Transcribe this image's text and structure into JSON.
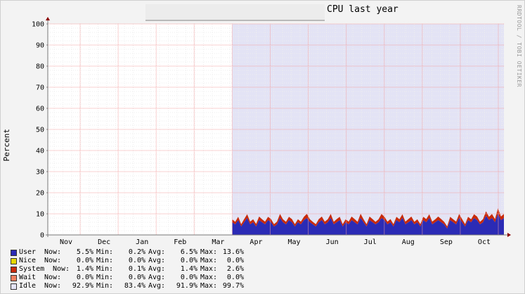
{
  "title": "CPU last year",
  "watermark": "RRDTOOL / TOBI OETIKER",
  "chart_data": {
    "type": "area",
    "title": "CPU last year",
    "ylabel": "Percent",
    "xlabel": "",
    "ylim": [
      0,
      100
    ],
    "yticks": [
      0,
      10,
      20,
      30,
      40,
      50,
      60,
      70,
      80,
      90,
      100
    ],
    "months": [
      "Nov",
      "Dec",
      "Jan",
      "Feb",
      "Mar",
      "Apr",
      "May",
      "Jun",
      "Jul",
      "Aug",
      "Sep",
      "Oct"
    ],
    "grid": true,
    "stacked": true,
    "data_start_month": "Mar",
    "series": [
      {
        "name": "User",
        "color": "#2b2bb5"
      },
      {
        "name": "Nice",
        "color": "#e6d800"
      },
      {
        "name": "System",
        "color": "#c82a0a"
      },
      {
        "name": "Wait",
        "color": "#ef7f5f"
      },
      {
        "name": "Idle",
        "color": "#e3e3f5"
      }
    ],
    "user_values": [
      6,
      5,
      7,
      4,
      6,
      8,
      5,
      6,
      4,
      7,
      6,
      5,
      7,
      6,
      4,
      5,
      8,
      6,
      5,
      7,
      6,
      4,
      6,
      5,
      7,
      8,
      6,
      5,
      4,
      6,
      7,
      5,
      6,
      8,
      5,
      6,
      7,
      4,
      6,
      5,
      7,
      6,
      5,
      8,
      6,
      4,
      7,
      6,
      5,
      6,
      8,
      7,
      5,
      6,
      4,
      7,
      6,
      8,
      5,
      6,
      7,
      5,
      6,
      4,
      7,
      6,
      8,
      5,
      6,
      7,
      6,
      5,
      3,
      7,
      6,
      5,
      8,
      6,
      4,
      7,
      6,
      8,
      7,
      5,
      6,
      9,
      7,
      8,
      6,
      10,
      7,
      8
    ],
    "system_values": [
      1.4,
      1.2,
      1.6,
      1.1,
      1.5,
      1.8,
      1.3,
      1.4,
      1.2,
      1.7,
      1.4,
      1.3,
      1.6,
      1.5,
      1.1,
      1.3,
      1.9,
      1.4,
      1.2,
      1.6,
      1.5,
      1.1,
      1.4,
      1.3,
      1.6,
      2.0,
      1.4,
      1.2,
      1.1,
      1.5,
      1.7,
      1.3,
      1.4,
      1.9,
      1.2,
      1.5,
      1.6,
      1.1,
      1.4,
      1.3,
      1.7,
      1.5,
      1.2,
      2.0,
      1.4,
      1.1,
      1.7,
      1.5,
      1.2,
      1.4,
      1.9,
      1.6,
      1.3,
      1.5,
      1.1,
      1.6,
      1.4,
      1.8,
      1.3,
      1.5,
      1.7,
      1.2,
      1.4,
      1.1,
      1.6,
      1.5,
      1.8,
      1.3,
      1.4,
      1.7,
      1.5,
      1.2,
      1.0,
      1.6,
      1.4,
      1.3,
      1.9,
      1.5,
      1.1,
      1.6,
      1.4,
      1.8,
      1.7,
      1.2,
      1.5,
      2.2,
      1.6,
      1.9,
      1.5,
      2.6,
      1.7,
      1.9
    ]
  },
  "legend": {
    "headers": {
      "now": "Now:",
      "min": "Min:",
      "avg": "Avg:",
      "max": "Max:"
    },
    "rows": [
      {
        "name": "User",
        "color": "#2b2bb5",
        "now": "5.5%",
        "min": "0.2%",
        "avg": "6.5%",
        "max": "13.6%"
      },
      {
        "name": "Nice",
        "color": "#e6d800",
        "now": "0.0%",
        "min": "0.0%",
        "avg": "0.0%",
        "max": "0.0%"
      },
      {
        "name": "System",
        "color": "#c82a0a",
        "now": "1.4%",
        "min": "0.1%",
        "avg": "1.4%",
        "max": "2.6%"
      },
      {
        "name": "Wait",
        "color": "#ef7f5f",
        "now": "0.0%",
        "min": "0.0%",
        "avg": "0.0%",
        "max": "0.0%"
      },
      {
        "name": "Idle",
        "color": "#e3e3f5",
        "now": "92.9%",
        "min": "83.4%",
        "avg": "91.9%",
        "max": "99.7%"
      }
    ]
  }
}
